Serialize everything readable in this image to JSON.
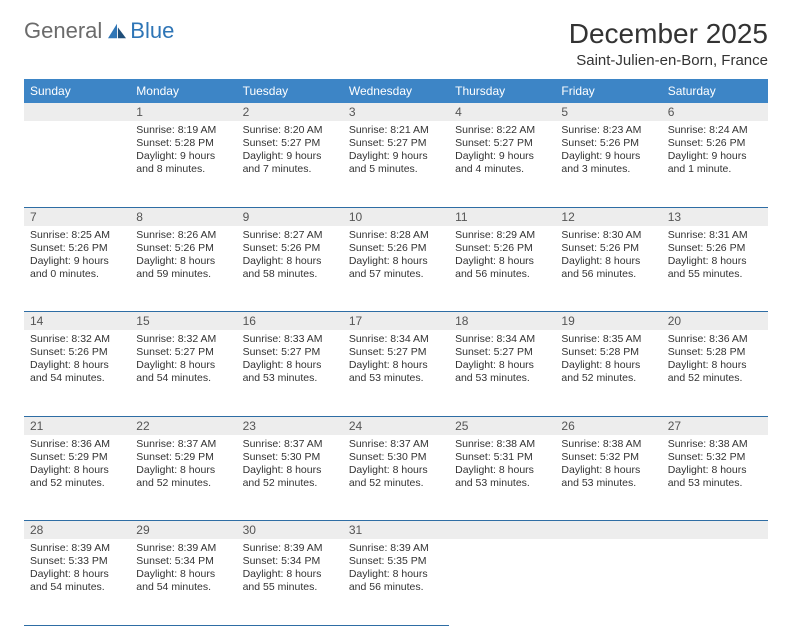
{
  "brand": {
    "part1": "General",
    "part2": "Blue"
  },
  "title": "December 2025",
  "location": "Saint-Julien-en-Born, France",
  "colors": {
    "header_bg": "#3d85c6",
    "header_text": "#ffffff",
    "daynum_bg": "#ededed",
    "row_divider": "#2e6da4",
    "brand_gray": "#6b6b6b",
    "brand_blue": "#2e75b6"
  },
  "weekdays": [
    "Sunday",
    "Monday",
    "Tuesday",
    "Wednesday",
    "Thursday",
    "Friday",
    "Saturday"
  ],
  "weeks": [
    [
      null,
      {
        "n": "1",
        "sr": "Sunrise: 8:19 AM",
        "ss": "Sunset: 5:28 PM",
        "d1": "Daylight: 9 hours",
        "d2": "and 8 minutes."
      },
      {
        "n": "2",
        "sr": "Sunrise: 8:20 AM",
        "ss": "Sunset: 5:27 PM",
        "d1": "Daylight: 9 hours",
        "d2": "and 7 minutes."
      },
      {
        "n": "3",
        "sr": "Sunrise: 8:21 AM",
        "ss": "Sunset: 5:27 PM",
        "d1": "Daylight: 9 hours",
        "d2": "and 5 minutes."
      },
      {
        "n": "4",
        "sr": "Sunrise: 8:22 AM",
        "ss": "Sunset: 5:27 PM",
        "d1": "Daylight: 9 hours",
        "d2": "and 4 minutes."
      },
      {
        "n": "5",
        "sr": "Sunrise: 8:23 AM",
        "ss": "Sunset: 5:26 PM",
        "d1": "Daylight: 9 hours",
        "d2": "and 3 minutes."
      },
      {
        "n": "6",
        "sr": "Sunrise: 8:24 AM",
        "ss": "Sunset: 5:26 PM",
        "d1": "Daylight: 9 hours",
        "d2": "and 1 minute."
      }
    ],
    [
      {
        "n": "7",
        "sr": "Sunrise: 8:25 AM",
        "ss": "Sunset: 5:26 PM",
        "d1": "Daylight: 9 hours",
        "d2": "and 0 minutes."
      },
      {
        "n": "8",
        "sr": "Sunrise: 8:26 AM",
        "ss": "Sunset: 5:26 PM",
        "d1": "Daylight: 8 hours",
        "d2": "and 59 minutes."
      },
      {
        "n": "9",
        "sr": "Sunrise: 8:27 AM",
        "ss": "Sunset: 5:26 PM",
        "d1": "Daylight: 8 hours",
        "d2": "and 58 minutes."
      },
      {
        "n": "10",
        "sr": "Sunrise: 8:28 AM",
        "ss": "Sunset: 5:26 PM",
        "d1": "Daylight: 8 hours",
        "d2": "and 57 minutes."
      },
      {
        "n": "11",
        "sr": "Sunrise: 8:29 AM",
        "ss": "Sunset: 5:26 PM",
        "d1": "Daylight: 8 hours",
        "d2": "and 56 minutes."
      },
      {
        "n": "12",
        "sr": "Sunrise: 8:30 AM",
        "ss": "Sunset: 5:26 PM",
        "d1": "Daylight: 8 hours",
        "d2": "and 56 minutes."
      },
      {
        "n": "13",
        "sr": "Sunrise: 8:31 AM",
        "ss": "Sunset: 5:26 PM",
        "d1": "Daylight: 8 hours",
        "d2": "and 55 minutes."
      }
    ],
    [
      {
        "n": "14",
        "sr": "Sunrise: 8:32 AM",
        "ss": "Sunset: 5:26 PM",
        "d1": "Daylight: 8 hours",
        "d2": "and 54 minutes."
      },
      {
        "n": "15",
        "sr": "Sunrise: 8:32 AM",
        "ss": "Sunset: 5:27 PM",
        "d1": "Daylight: 8 hours",
        "d2": "and 54 minutes."
      },
      {
        "n": "16",
        "sr": "Sunrise: 8:33 AM",
        "ss": "Sunset: 5:27 PM",
        "d1": "Daylight: 8 hours",
        "d2": "and 53 minutes."
      },
      {
        "n": "17",
        "sr": "Sunrise: 8:34 AM",
        "ss": "Sunset: 5:27 PM",
        "d1": "Daylight: 8 hours",
        "d2": "and 53 minutes."
      },
      {
        "n": "18",
        "sr": "Sunrise: 8:34 AM",
        "ss": "Sunset: 5:27 PM",
        "d1": "Daylight: 8 hours",
        "d2": "and 53 minutes."
      },
      {
        "n": "19",
        "sr": "Sunrise: 8:35 AM",
        "ss": "Sunset: 5:28 PM",
        "d1": "Daylight: 8 hours",
        "d2": "and 52 minutes."
      },
      {
        "n": "20",
        "sr": "Sunrise: 8:36 AM",
        "ss": "Sunset: 5:28 PM",
        "d1": "Daylight: 8 hours",
        "d2": "and 52 minutes."
      }
    ],
    [
      {
        "n": "21",
        "sr": "Sunrise: 8:36 AM",
        "ss": "Sunset: 5:29 PM",
        "d1": "Daylight: 8 hours",
        "d2": "and 52 minutes."
      },
      {
        "n": "22",
        "sr": "Sunrise: 8:37 AM",
        "ss": "Sunset: 5:29 PM",
        "d1": "Daylight: 8 hours",
        "d2": "and 52 minutes."
      },
      {
        "n": "23",
        "sr": "Sunrise: 8:37 AM",
        "ss": "Sunset: 5:30 PM",
        "d1": "Daylight: 8 hours",
        "d2": "and 52 minutes."
      },
      {
        "n": "24",
        "sr": "Sunrise: 8:37 AM",
        "ss": "Sunset: 5:30 PM",
        "d1": "Daylight: 8 hours",
        "d2": "and 52 minutes."
      },
      {
        "n": "25",
        "sr": "Sunrise: 8:38 AM",
        "ss": "Sunset: 5:31 PM",
        "d1": "Daylight: 8 hours",
        "d2": "and 53 minutes."
      },
      {
        "n": "26",
        "sr": "Sunrise: 8:38 AM",
        "ss": "Sunset: 5:32 PM",
        "d1": "Daylight: 8 hours",
        "d2": "and 53 minutes."
      },
      {
        "n": "27",
        "sr": "Sunrise: 8:38 AM",
        "ss": "Sunset: 5:32 PM",
        "d1": "Daylight: 8 hours",
        "d2": "and 53 minutes."
      }
    ],
    [
      {
        "n": "28",
        "sr": "Sunrise: 8:39 AM",
        "ss": "Sunset: 5:33 PM",
        "d1": "Daylight: 8 hours",
        "d2": "and 54 minutes."
      },
      {
        "n": "29",
        "sr": "Sunrise: 8:39 AM",
        "ss": "Sunset: 5:34 PM",
        "d1": "Daylight: 8 hours",
        "d2": "and 54 minutes."
      },
      {
        "n": "30",
        "sr": "Sunrise: 8:39 AM",
        "ss": "Sunset: 5:34 PM",
        "d1": "Daylight: 8 hours",
        "d2": "and 55 minutes."
      },
      {
        "n": "31",
        "sr": "Sunrise: 8:39 AM",
        "ss": "Sunset: 5:35 PM",
        "d1": "Daylight: 8 hours",
        "d2": "and 56 minutes."
      },
      null,
      null,
      null
    ]
  ]
}
